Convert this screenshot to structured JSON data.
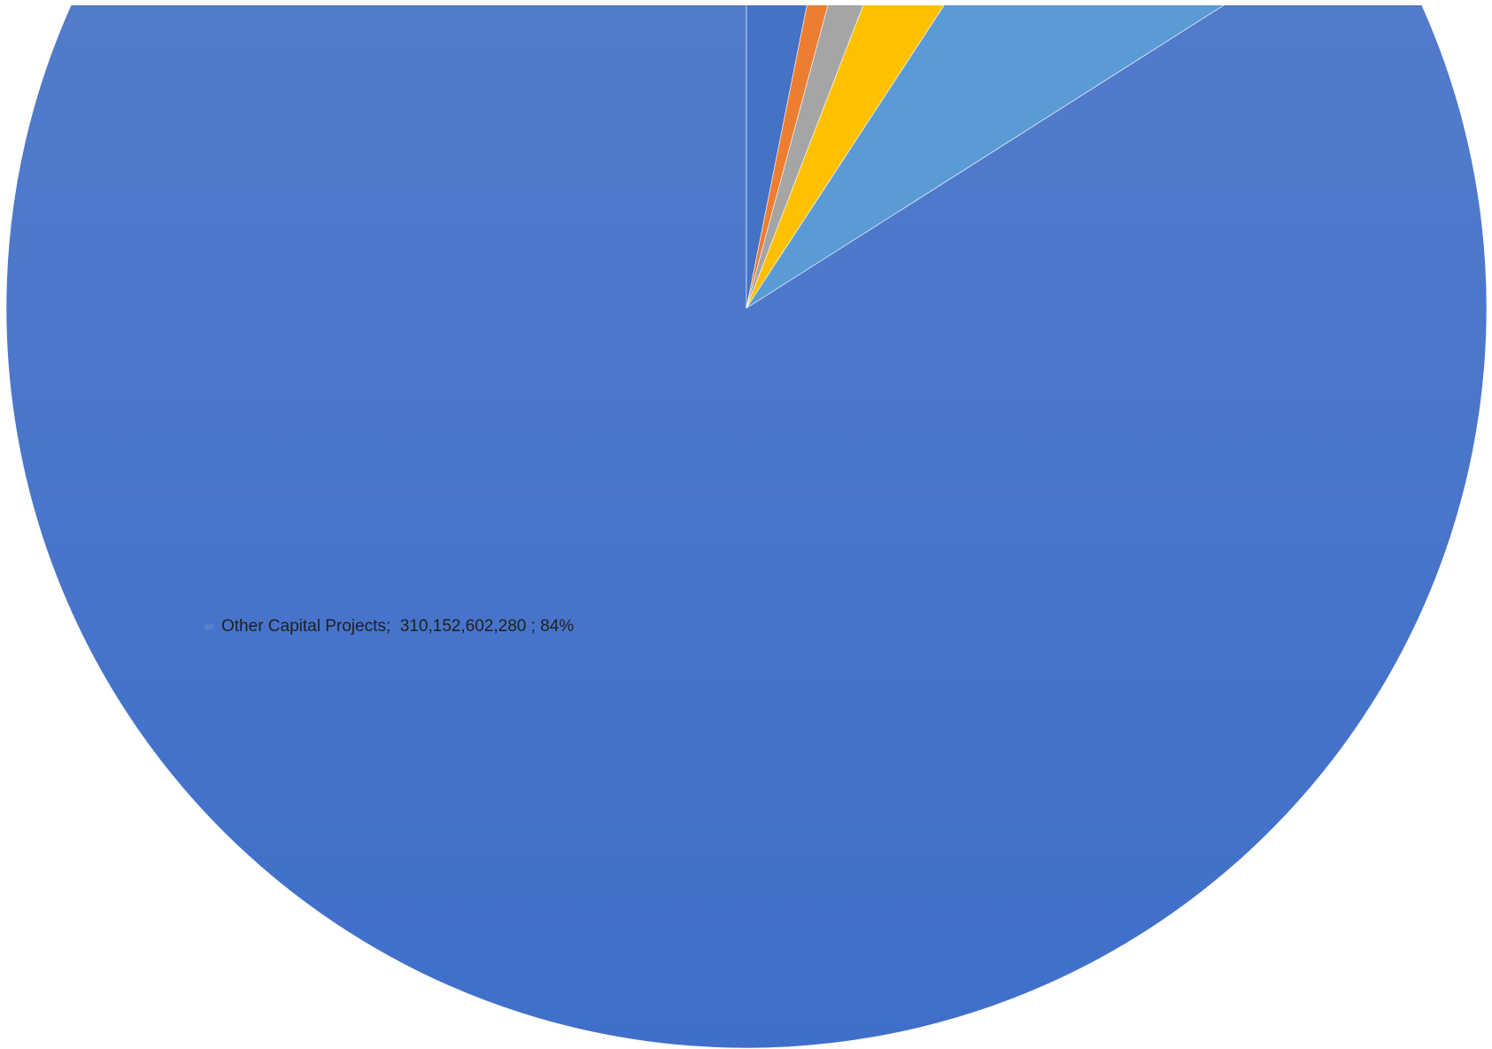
{
  "chart_data": {
    "type": "pie",
    "slices": [
      {
        "name": "",
        "value": 3.0,
        "color": "#4472c4"
      },
      {
        "name": "",
        "value": 1.0,
        "color": "#ed7d31"
      },
      {
        "name": "",
        "value": 1.6,
        "color": "#a5a5a5"
      },
      {
        "name": "",
        "value": 3.2,
        "color": "#ffc000"
      },
      {
        "name": "",
        "value": 6.5,
        "color": "#5b9bd5"
      },
      {
        "name": "Other Capital Projects",
        "value": 310152602280,
        "percent": 84,
        "color": "#4472c4"
      }
    ],
    "data_labels": [
      {
        "series": "Other Capital Projects",
        "text": "Other Capital Projects;  310,152,602,280 ; 84%",
        "color": "#5a7fcb"
      }
    ],
    "gradient_top_color": "#5b80ca",
    "gradient_bottom_color": "#3f6fca",
    "legend": "none",
    "cropped": "top"
  }
}
